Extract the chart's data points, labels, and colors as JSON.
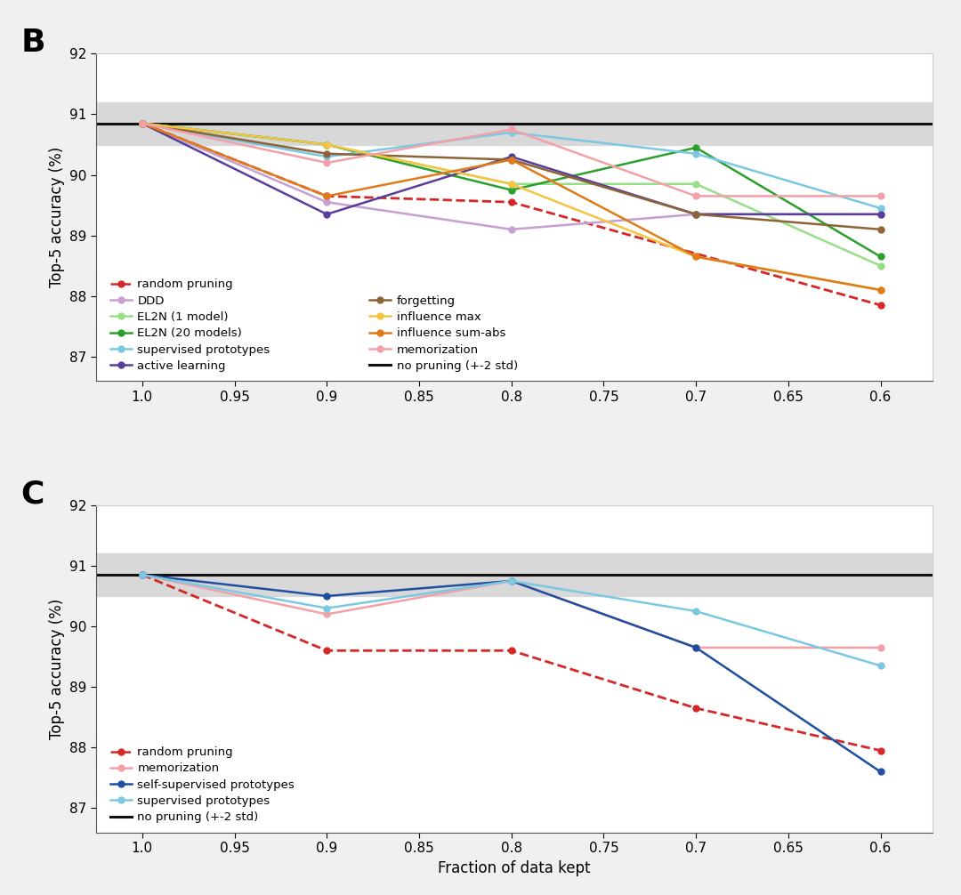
{
  "x": [
    1.0,
    0.9,
    0.8,
    0.7,
    0.6
  ],
  "panel_B": {
    "random_pruning": [
      90.85,
      89.65,
      89.55,
      null,
      87.85
    ],
    "DDD": [
      90.85,
      89.55,
      89.1,
      89.35,
      89.35
    ],
    "EL2N_1model": [
      90.85,
      90.5,
      89.85,
      89.85,
      88.5
    ],
    "EL2N_20models": [
      90.85,
      90.5,
      89.75,
      90.45,
      88.65
    ],
    "supervised_prototypes": [
      90.85,
      90.3,
      90.7,
      90.35,
      89.45
    ],
    "active_learning": [
      90.85,
      89.35,
      90.3,
      89.35,
      89.35
    ],
    "forgetting": [
      90.85,
      90.35,
      90.25,
      89.35,
      89.1
    ],
    "influence_max": [
      90.85,
      90.5,
      89.85,
      88.65,
      88.1
    ],
    "influence_sum_abs": [
      90.85,
      89.65,
      90.25,
      88.65,
      88.1
    ],
    "memorization": [
      90.85,
      90.2,
      90.75,
      89.65,
      89.65
    ],
    "no_pruning": 90.85,
    "std_band_lo": 90.5,
    "std_band_hi": 91.2
  },
  "panel_C": {
    "random_pruning": [
      90.85,
      89.6,
      89.6,
      88.65,
      87.95
    ],
    "memorization": [
      90.85,
      90.2,
      90.75,
      89.65,
      89.65
    ],
    "self_supervised_proto": [
      90.85,
      90.5,
      90.75,
      89.65,
      87.6
    ],
    "supervised_prototypes": [
      90.85,
      90.3,
      90.75,
      90.25,
      89.35
    ],
    "no_pruning": 90.85,
    "std_band_lo": 90.5,
    "std_band_hi": 91.2
  },
  "colors": {
    "random_pruning": "#d62728",
    "DDD": "#c5a0d0",
    "EL2N_1model": "#98df8a",
    "EL2N_20models": "#2ca02c",
    "supervised_prototypes": "#7bc8e2",
    "active_learning": "#5a3e9b",
    "forgetting": "#8c6437",
    "influence_max": "#f5c542",
    "influence_sum_abs": "#e07b1a",
    "memorization": "#f4a0a8",
    "self_supervised_proto": "#1f4fa0",
    "no_pruning": "#111111"
  },
  "ylim": [
    86.6,
    92.0
  ],
  "xlim_left": 1.025,
  "xlim_right": 0.572,
  "xticks": [
    1.0,
    0.95,
    0.9,
    0.85,
    0.8,
    0.75,
    0.7,
    0.65,
    0.6
  ],
  "yticks": [
    87,
    88,
    89,
    90,
    91,
    92
  ],
  "xlabel": "Fraction of data kept",
  "ylabel": "Top-5 accuracy (%)",
  "background_color": "#ffffff",
  "outer_background": "#f0f0f0",
  "band_color": "#d8d8d8"
}
